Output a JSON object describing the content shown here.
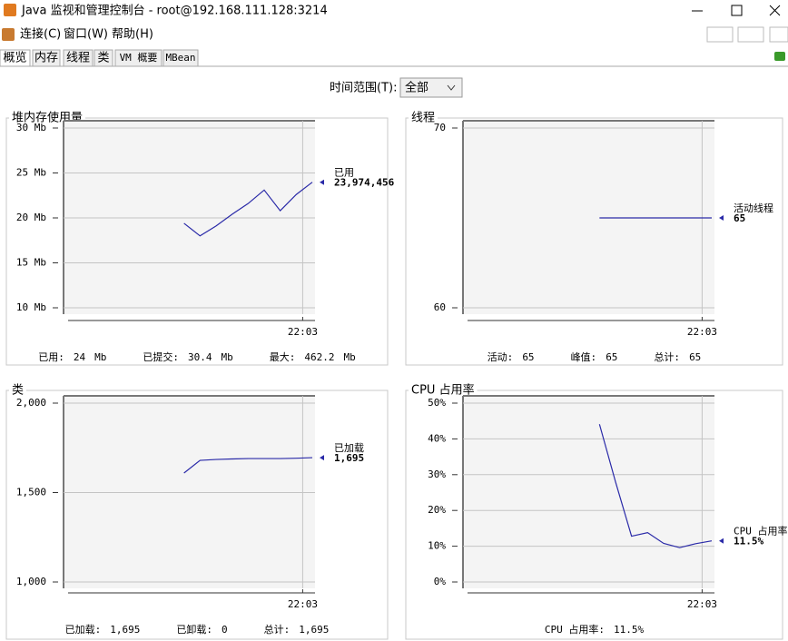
{
  "window": {
    "title": "Java 监视和管理控制台 - root@192.168.111.128:3214",
    "menu": [
      "连接(C)",
      "窗口(W)",
      "帮助(H)"
    ],
    "tabs": [
      "概览",
      "内存",
      "线程",
      "类",
      "VM 概要",
      "MBean"
    ],
    "time_range_label": "时间范围(T):",
    "time_range_value": "全部"
  },
  "chart_data": [
    {
      "type": "line",
      "title": "堆内存使用量",
      "categories": [
        null,
        null,
        null,
        null,
        null,
        null,
        null,
        null,
        null,
        null,
        null,
        null,
        null,
        null,
        null,
        null
      ],
      "series": [
        {
          "name": "已用",
          "color": "#2a2aa8",
          "values": [
            null,
            null,
            null,
            null,
            null,
            null,
            null,
            19.4,
            18.0,
            19.1,
            20.4,
            21.6,
            23.1,
            20.8,
            22.6,
            23.97
          ],
          "value_label": "23,974,456"
        }
      ],
      "xlim": [
        0,
        15
      ],
      "xticks": [
        {
          "value": 14.4,
          "label": "22:03"
        }
      ],
      "ylim": [
        10,
        30
      ],
      "yticks": [
        {
          "value": 10,
          "label": "10 Mb"
        },
        {
          "value": 15,
          "label": "15 Mb"
        },
        {
          "value": 20,
          "label": "20 Mb"
        },
        {
          "value": 25,
          "label": "25 Mb"
        },
        {
          "value": 30,
          "label": "30 Mb"
        }
      ],
      "grid": true,
      "stats": [
        {
          "label": "已用:",
          "value": "24",
          "unit": "Mb"
        },
        {
          "label": "已提交:",
          "value": "30.4",
          "unit": "Mb"
        },
        {
          "label": "最大:",
          "value": "462.2",
          "unit": "Mb"
        }
      ]
    },
    {
      "type": "line",
      "title": "线程",
      "categories": [
        null,
        null,
        null,
        null,
        null,
        null,
        null,
        null,
        null,
        null,
        null,
        null,
        null,
        null,
        null,
        null
      ],
      "series": [
        {
          "name": "活动线程",
          "color": "#2a2aa8",
          "values": [
            null,
            null,
            null,
            null,
            null,
            null,
            null,
            null,
            65,
            65,
            65,
            65,
            65,
            65,
            65,
            65
          ],
          "value_label": "65"
        }
      ],
      "xlim": [
        0,
        15
      ],
      "xticks": [
        {
          "value": 14.4,
          "label": "22:03"
        }
      ],
      "ylim": [
        60,
        70
      ],
      "yticks": [
        60,
        70
      ],
      "grid": true,
      "stats": [
        {
          "label": "活动:",
          "value": "65"
        },
        {
          "label": "峰值:",
          "value": "65"
        },
        {
          "label": "总计:",
          "value": "65"
        }
      ]
    },
    {
      "type": "line",
      "title": "类",
      "categories": [
        null,
        null,
        null,
        null,
        null,
        null,
        null,
        null,
        null,
        null,
        null,
        null,
        null,
        null,
        null,
        null
      ],
      "series": [
        {
          "name": "已加载",
          "color": "#2a2aa8",
          "values": [
            null,
            null,
            null,
            null,
            null,
            null,
            null,
            1609,
            1680,
            1685,
            1688,
            1690,
            1690,
            1690,
            1692,
            1695
          ],
          "value_label": "1,695"
        }
      ],
      "xlim": [
        0,
        15
      ],
      "xticks": [
        {
          "value": 14.4,
          "label": "22:03"
        }
      ],
      "ylim": [
        1000,
        2000
      ],
      "yticks": [
        {
          "value": 1000,
          "label": "1,000"
        },
        {
          "value": 1500,
          "label": "1,500"
        },
        {
          "value": 2000,
          "label": "2,000"
        }
      ],
      "grid": true,
      "stats": [
        {
          "label": "已加载:",
          "value": "1,695"
        },
        {
          "label": "已卸载:",
          "value": "0"
        },
        {
          "label": "总计:",
          "value": "1,695"
        }
      ]
    },
    {
      "type": "line",
      "title": "CPU 占用率",
      "categories": [
        null,
        null,
        null,
        null,
        null,
        null,
        null,
        null,
        null,
        null,
        null,
        null,
        null,
        null,
        null,
        null
      ],
      "series": [
        {
          "name": "CPU 占用率",
          "color": "#2a2aa8",
          "values": [
            null,
            null,
            null,
            null,
            null,
            null,
            null,
            null,
            44.1,
            28,
            12.8,
            13.8,
            10.8,
            9.6,
            10.7,
            11.5
          ],
          "value_label": "11.5%"
        }
      ],
      "xlim": [
        0,
        15
      ],
      "xticks": [
        {
          "value": 14.4,
          "label": "22:03"
        }
      ],
      "ylim": [
        0,
        50
      ],
      "yticks": [
        {
          "value": 0,
          "label": "0%"
        },
        {
          "value": 10,
          "label": "10%"
        },
        {
          "value": 20,
          "label": "20%"
        },
        {
          "value": 30,
          "label": "30%"
        },
        {
          "value": 40,
          "label": "40%"
        },
        {
          "value": 50,
          "label": "50%"
        }
      ],
      "grid": true,
      "stats": [
        {
          "label": "CPU 占用率:",
          "value": "11.5%"
        }
      ]
    }
  ]
}
